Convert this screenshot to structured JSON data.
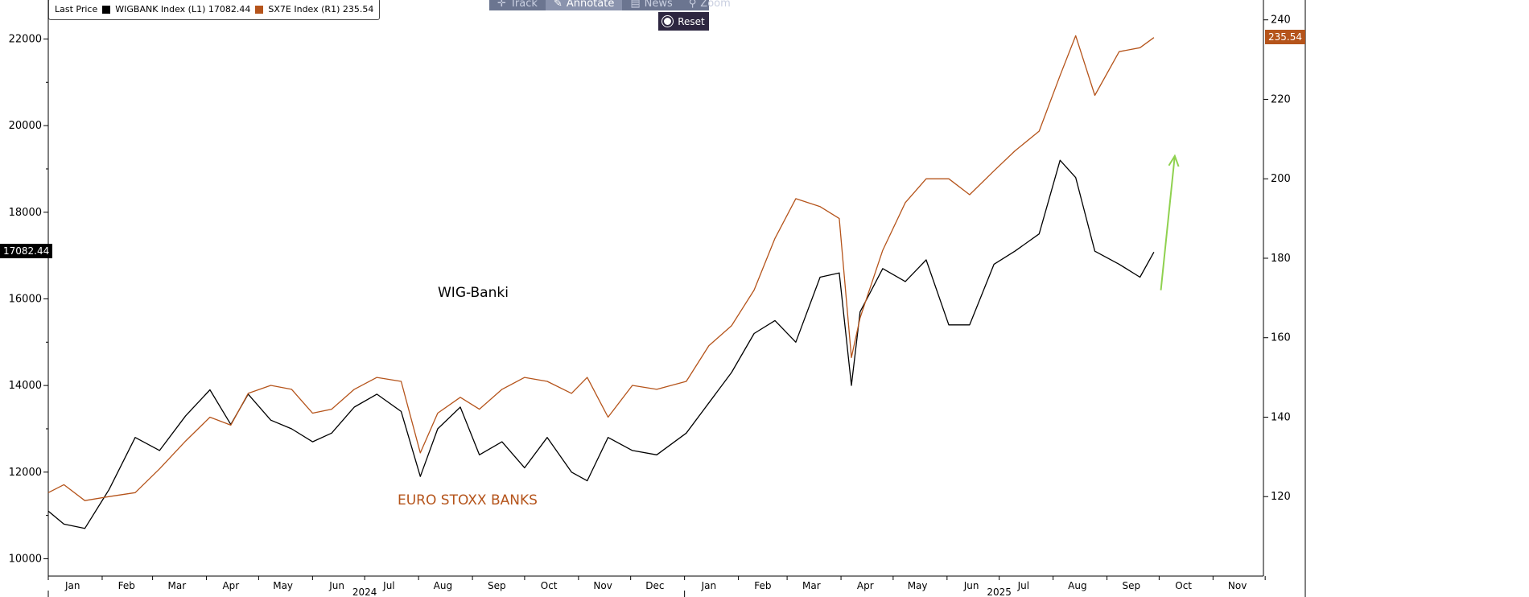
{
  "legend": {
    "label": "Last Price",
    "series1": "WIGBANK Index  (L1) 17082.44",
    "series2": "SX7E Index  (R1) 235.54"
  },
  "toolbar": {
    "track": "Track",
    "annotate": "Annotate",
    "news": "News",
    "zoom": "Zoom",
    "reset": "Reset"
  },
  "annotations": {
    "wig": "WIG-Banki",
    "euro": "EURO STOXX BANKS"
  },
  "badges": {
    "left": "17082.44",
    "right": "235.54"
  },
  "colors": {
    "wig": "#000000",
    "sx7e": "#b5541b",
    "arrow": "#8fd14f",
    "reset_bg": "#2d2640",
    "toolbar_bg": "#6b7590"
  },
  "chart_data": {
    "type": "line",
    "x_start": "2024-01-01",
    "x_end": "2025-11-30",
    "month_labels": [
      "Jan",
      "Feb",
      "Mar",
      "Apr",
      "May",
      "Jun",
      "Jul",
      "Aug",
      "Sep",
      "Oct",
      "Nov",
      "Dec",
      "Jan",
      "Feb",
      "Mar",
      "Apr",
      "May",
      "Jun",
      "Jul",
      "Aug",
      "Sep",
      "Oct",
      "Nov"
    ],
    "year_labels": [
      "2024",
      "2025"
    ],
    "y_left": {
      "min": 9600,
      "max": 22900,
      "ticks": [
        10000,
        12000,
        14000,
        16000,
        18000,
        20000,
        22000
      ]
    },
    "y_right": {
      "min": 100,
      "max": 245,
      "ticks": [
        120,
        140,
        160,
        180,
        200,
        220,
        240
      ]
    },
    "series": [
      {
        "axis": "left",
        "x": [
          "2024-01-01",
          "2024-01-10",
          "2024-01-22",
          "2024-02-05",
          "2024-02-20",
          "2024-03-05",
          "2024-03-20",
          "2024-04-03",
          "2024-04-15",
          "2024-04-25",
          "2024-05-08",
          "2024-05-20",
          "2024-06-01",
          "2024-06-12",
          "2024-06-25",
          "2024-07-08",
          "2024-07-22",
          "2024-08-02",
          "2024-08-12",
          "2024-08-25",
          "2024-09-05",
          "2024-09-18",
          "2024-10-01",
          "2024-10-14",
          "2024-10-28",
          "2024-11-06",
          "2024-11-18",
          "2024-12-02",
          "2024-12-16",
          "2025-01-02",
          "2025-01-15",
          "2025-01-28",
          "2025-02-10",
          "2025-02-22",
          "2025-03-06",
          "2025-03-20",
          "2025-03-31",
          "2025-04-07",
          "2025-04-12",
          "2025-04-25",
          "2025-05-08",
          "2025-05-20",
          "2025-06-02",
          "2025-06-14",
          "2025-06-28",
          "2025-07-10",
          "2025-07-24",
          "2025-08-05",
          "2025-08-14",
          "2025-08-25",
          "2025-09-08",
          "2025-09-20",
          "2025-09-28"
        ],
        "y": [
          11100,
          10800,
          10700,
          11600,
          12800,
          12500,
          13300,
          13900,
          13100,
          13800,
          13200,
          13000,
          12700,
          12900,
          13500,
          13800,
          13400,
          11900,
          13000,
          13500,
          12400,
          12700,
          12100,
          12800,
          12000,
          11800,
          12800,
          12500,
          12400,
          12900,
          13600,
          14300,
          15200,
          15500,
          15000,
          16500,
          16600,
          14000,
          15700,
          16700,
          16400,
          16900,
          15400,
          15400,
          16800,
          17100,
          17500,
          19200,
          18800,
          17100,
          16800,
          16500,
          17080
        ]
      },
      {
        "axis": "right",
        "x": [
          "2024-01-01",
          "2024-01-10",
          "2024-01-22",
          "2024-02-05",
          "2024-02-20",
          "2024-03-05",
          "2024-03-20",
          "2024-04-03",
          "2024-04-15",
          "2024-04-25",
          "2024-05-08",
          "2024-05-20",
          "2024-06-01",
          "2024-06-12",
          "2024-06-25",
          "2024-07-08",
          "2024-07-22",
          "2024-08-02",
          "2024-08-12",
          "2024-08-25",
          "2024-09-05",
          "2024-09-18",
          "2024-10-01",
          "2024-10-14",
          "2024-10-28",
          "2024-11-06",
          "2024-11-18",
          "2024-12-02",
          "2024-12-16",
          "2025-01-02",
          "2025-01-15",
          "2025-01-28",
          "2025-02-10",
          "2025-02-22",
          "2025-03-06",
          "2025-03-20",
          "2025-03-31",
          "2025-04-07",
          "2025-04-12",
          "2025-04-25",
          "2025-05-08",
          "2025-05-20",
          "2025-06-02",
          "2025-06-14",
          "2025-06-28",
          "2025-07-10",
          "2025-07-24",
          "2025-08-05",
          "2025-08-14",
          "2025-08-25",
          "2025-09-08",
          "2025-09-20",
          "2025-09-28"
        ],
        "y": [
          121,
          123,
          119,
          120,
          121,
          127,
          134,
          140,
          138,
          146,
          148,
          147,
          141,
          142,
          147,
          150,
          149,
          131,
          141,
          145,
          142,
          147,
          150,
          149,
          146,
          150,
          140,
          148,
          147,
          149,
          158,
          163,
          172,
          185,
          195,
          193,
          190,
          155,
          165,
          182,
          194,
          200,
          200,
          196,
          202,
          207,
          212,
          226,
          236,
          221,
          232,
          233,
          235.54
        ]
      }
    ],
    "arrow": {
      "from": [
        "2025-10-02",
        16200
      ],
      "to": [
        "2025-10-10",
        19300
      ]
    }
  }
}
